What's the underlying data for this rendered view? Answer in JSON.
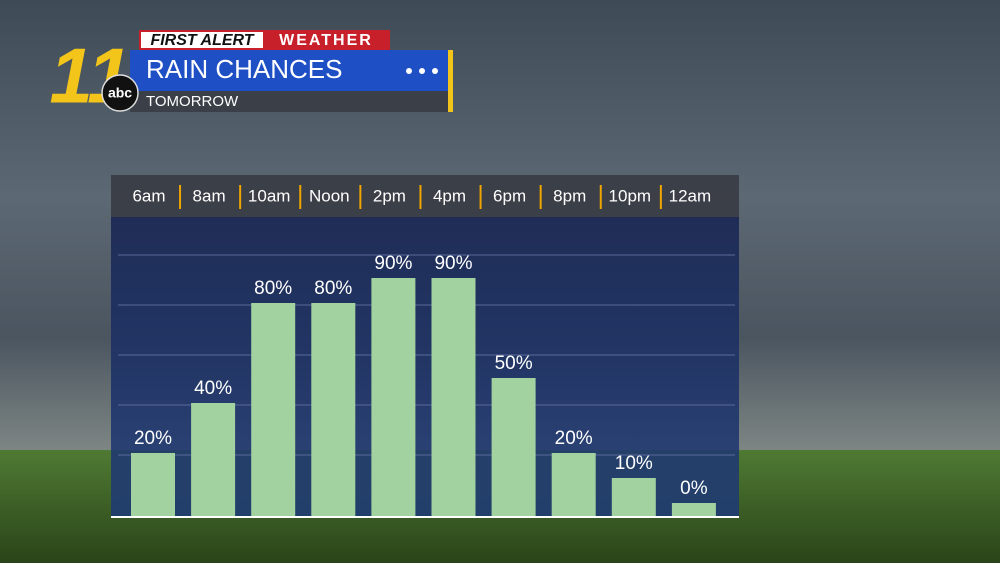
{
  "branding": {
    "first": "FIRST ALERT",
    "weather": "WEATHER",
    "station": "11",
    "network": "abc"
  },
  "chart_data": {
    "type": "bar",
    "title": "RAIN CHANCES",
    "subtitle": "TOMORROW",
    "categories": [
      "6am",
      "8am",
      "10am",
      "Noon",
      "2pm",
      "4pm",
      "6pm",
      "8pm",
      "10pm",
      "12am"
    ],
    "values": [
      20,
      40,
      80,
      80,
      90,
      90,
      50,
      20,
      10,
      0
    ],
    "value_labels": [
      "20%",
      "40%",
      "80%",
      "80%",
      "90%",
      "90%",
      "50%",
      "20%",
      "10%",
      "0%"
    ],
    "color": "#a2d2a0",
    "ylim": [
      0,
      100
    ]
  }
}
